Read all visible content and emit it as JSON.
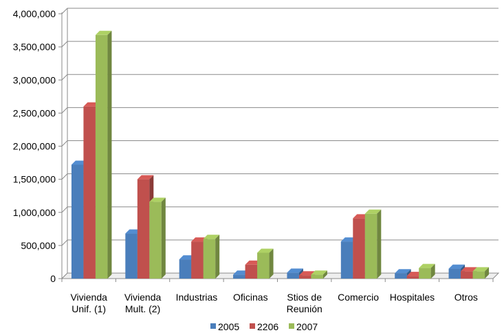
{
  "chart_data": {
    "type": "bar",
    "title": "",
    "xlabel": "",
    "ylabel": "",
    "ylim": [
      0,
      4000000
    ],
    "y_ticks": [
      "0",
      "500,000",
      "1,000,000",
      "1,500,000",
      "2,000,000",
      "2,500,000",
      "3,000,000",
      "3,500,000",
      "4,000,000"
    ],
    "grid": true,
    "legend_position": "bottom",
    "style": "3d-clustered-column",
    "categories": [
      [
        "Vivienda",
        "Unif. (1)"
      ],
      [
        "Vivienda",
        "Mult. (2)"
      ],
      [
        "Industrias"
      ],
      [
        "Oficinas"
      ],
      [
        "Stios de",
        "Reunión"
      ],
      [
        "Comercio"
      ],
      [
        "Hospitales"
      ],
      [
        "Otros"
      ]
    ],
    "series": [
      {
        "name": "2005",
        "color": "#4a7ebb",
        "values": [
          1720000,
          680000,
          290000,
          60000,
          90000,
          560000,
          80000,
          150000
        ]
      },
      {
        "name": "2206",
        "color": "#c0504d",
        "values": [
          2600000,
          1500000,
          560000,
          210000,
          50000,
          910000,
          40000,
          110000
        ]
      },
      {
        "name": "2007",
        "color": "#9bbb59",
        "values": [
          3680000,
          1160000,
          600000,
          390000,
          60000,
          980000,
          160000,
          110000
        ]
      }
    ]
  }
}
